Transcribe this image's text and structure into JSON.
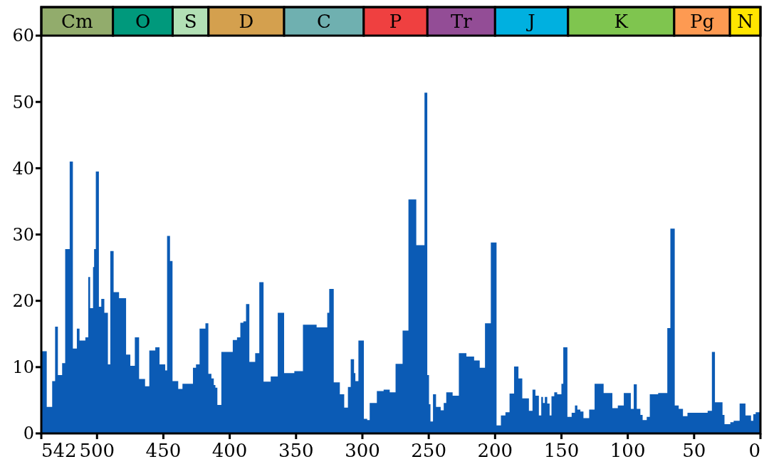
{
  "chart_data": {
    "type": "area",
    "color": "#0b5bb5",
    "x": [
      542,
      537.9,
      533.8,
      531.6,
      529.5,
      526.3,
      524,
      520.6,
      518.2,
      515.2,
      513.2,
      508.8,
      506.6,
      505.2,
      503,
      502.2,
      500.9,
      498.6,
      496.8,
      494.5,
      491.8,
      490,
      487.5,
      483.4,
      478.1,
      474.9,
      471.5,
      468.3,
      463.8,
      460.6,
      456.1,
      452.9,
      448.6,
      447.2,
      445,
      443.1,
      438.8,
      435.6,
      427.7,
      425.4,
      422.7,
      418.3,
      416.1,
      413.8,
      412,
      410.8,
      409.3,
      406.3,
      397.7,
      394.5,
      392,
      389.7,
      387.7,
      385.2,
      380.8,
      377.7,
      374.5,
      369.1,
      363.8,
      359,
      351.3,
      344.8,
      334.5,
      326.5,
      325,
      321.6,
      317,
      313.7,
      310.9,
      308.8,
      306.3,
      305.3,
      303,
      298.9,
      296.4,
      294.5,
      289.1,
      284,
      279.4,
      275,
      269.7,
      265.3,
      259.4,
      253.2,
      251.1,
      249.8,
      248.7,
      246.8,
      244.5,
      241,
      238.7,
      236.8,
      232,
      227.3,
      221.6,
      215.8,
      211.6,
      207.6,
      203.2,
      198.9,
      195.6,
      192.2,
      189.1,
      185.7,
      182.4,
      179.5,
      174.5,
      171.8,
      169.6,
      167,
      165.2,
      163.9,
      162.5,
      160.7,
      158.9,
      157.5,
      155.4,
      153.2,
      150,
      148.6,
      145.5,
      142.3,
      139.8,
      138,
      135.7,
      133.4,
      129.1,
      125,
      118.2,
      111.6,
      107.5,
      103,
      97.7,
      95.5,
      93.2,
      90.5,
      88.8,
      85.7,
      83.4,
      77.1,
      70.2,
      67.9,
      64.6,
      61.6,
      58.4,
      55,
      39.8,
      36.6,
      34.3,
      28.6,
      27.1,
      22.7,
      20.2,
      15.7,
      11.3,
      7.1,
      5.4,
      3.6,
      0
    ],
    "values": [
      12.4,
      4.0,
      7.9,
      16.1,
      8.8,
      10.6,
      27.8,
      41,
      12.8,
      15.8,
      14.0,
      14.5,
      23.6,
      18.9,
      25.1,
      27.8,
      39.5,
      19.1,
      20.3,
      18.2,
      10.4,
      27.5,
      21.3,
      20.4,
      11.9,
      10.2,
      14.5,
      8.2,
      7.1,
      12.5,
      13.0,
      10.4,
      9.5,
      29.8,
      26.0,
      7.9,
      6.7,
      7.5,
      9.9,
      10.4,
      15.8,
      16.6,
      9.0,
      8.3,
      7.3,
      6.9,
      4.3,
      12.3,
      14.1,
      14.5,
      16.7,
      16.9,
      19.5,
      10.8,
      12.1,
      22.8,
      7.8,
      8.6,
      18.2,
      9.1,
      9.4,
      16.4,
      16.0,
      18.2,
      21.8,
      7.7,
      5.9,
      3.9,
      7.0,
      11.2,
      9.1,
      7.9,
      14.0,
      2.2,
      2.0,
      4.6,
      6.4,
      6.6,
      6.2,
      10.5,
      15.5,
      35.3,
      28.4,
      51.4,
      8.8,
      4.4,
      1.8,
      5.9,
      4.0,
      3.5,
      4.6,
      6.2,
      5.7,
      12.1,
      11.6,
      11.0,
      9.9,
      16.6,
      28.8,
      1.2,
      2.7,
      3.2,
      6.0,
      10.1,
      8.3,
      5.3,
      3.4,
      6.6,
      5.7,
      2.7,
      5.5,
      4.6,
      5.5,
      4.5,
      2.7,
      5.6,
      6.2,
      5.9,
      7.5,
      13.0,
      2.5,
      3.1,
      4.2,
      3.6,
      3.3,
      2.3,
      3.6,
      7.5,
      6.1,
      3.8,
      4.2,
      6.1,
      3.7,
      7.4,
      3.7,
      2.8,
      2.0,
      2.5,
      5.9,
      6.1,
      15.9,
      30.9,
      4.2,
      3.7,
      2.6,
      3.1,
      3.4,
      12.3,
      4.7,
      2.8,
      1.4,
      1.7,
      1.9,
      4.5,
      2.7,
      1.9,
      2.9,
      3.2,
      3.2
    ],
    "xlim": [
      542,
      0
    ],
    "xticks": [
      542,
      500,
      450,
      400,
      350,
      300,
      250,
      200,
      150,
      100,
      50,
      0
    ],
    "ylim": [
      0,
      64.3
    ],
    "yticks": [
      0,
      10,
      20,
      30,
      40,
      50,
      60
    ],
    "bands": [
      {
        "axis": "x",
        "from": 542,
        "to": 488,
        "label": "Cm",
        "color": "#92ac6c"
      },
      {
        "axis": "x",
        "from": 488,
        "to": 443,
        "label": "O",
        "color": "#00997c"
      },
      {
        "axis": "x",
        "from": 443,
        "to": 416,
        "label": "S",
        "color": "#b2e0b5"
      },
      {
        "axis": "x",
        "from": 416,
        "to": 359,
        "label": "D",
        "color": "#d4a04e"
      },
      {
        "axis": "x",
        "from": 359,
        "to": 299,
        "label": "C",
        "color": "#6fb0b0"
      },
      {
        "axis": "x",
        "from": 299,
        "to": 251,
        "label": "P",
        "color": "#ef4040"
      },
      {
        "axis": "x",
        "from": 251,
        "to": 200,
        "label": "Tr",
        "color": "#934d96"
      },
      {
        "axis": "x",
        "from": 200,
        "to": 145,
        "label": "J",
        "color": "#00b0e0"
      },
      {
        "axis": "x",
        "from": 145,
        "to": 65,
        "label": "K",
        "color": "#7fc54f"
      },
      {
        "axis": "x",
        "from": 65,
        "to": 23,
        "label": "Pg",
        "color": "#fd9a52"
      },
      {
        "axis": "x",
        "from": 23,
        "to": 0,
        "label": "N",
        "color": "#ffe500"
      }
    ]
  }
}
